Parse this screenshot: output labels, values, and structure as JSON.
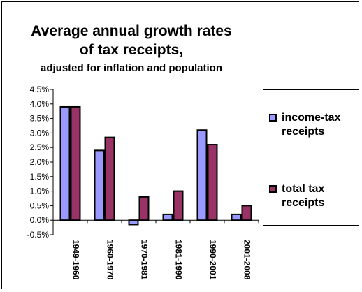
{
  "chart_data": {
    "type": "bar",
    "title": "Average annual growth rates",
    "title_line2": "of tax receipts,",
    "subtitle": "adjusted for inflation and population",
    "categories": [
      "1949-1960",
      "1960-1970",
      "1970-1981",
      "1981-1990",
      "1990-2001",
      "2001-2008"
    ],
    "series": [
      {
        "name": "income-tax receipts",
        "name_line1": "income-tax",
        "name_line2": "receipts",
        "color": "#9999ff",
        "values": [
          3.9,
          2.4,
          -0.15,
          0.2,
          3.1,
          0.2
        ]
      },
      {
        "name": "total tax receipts",
        "name_line1": "total tax",
        "name_line2": "receipts",
        "color": "#993366",
        "values": [
          3.9,
          2.85,
          0.8,
          1.0,
          2.6,
          0.5
        ]
      }
    ],
    "ylim": [
      -0.5,
      4.5
    ],
    "yticks": [
      "4.5%",
      "4.0%",
      "3.5%",
      "3.0%",
      "2.5%",
      "2.0%",
      "1.5%",
      "1.0%",
      "0.5%",
      "0.0%",
      "-0.5%"
    ],
    "xlabel": "",
    "ylabel": "",
    "grid": false,
    "legend_position": "right"
  }
}
